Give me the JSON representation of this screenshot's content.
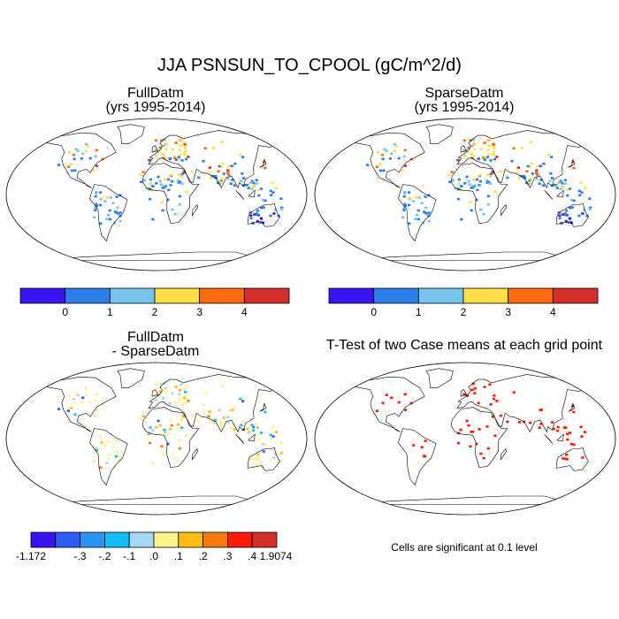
{
  "figure": {
    "title": "JJA PSNSUN_TO_CPOOL (gC/m^2/d)",
    "sig_note": "Cells are significant at 0.1 level"
  },
  "panels": [
    {
      "name": "full",
      "title_line1": "FullDatm",
      "title_line2": "(yrs 1995-2014)"
    },
    {
      "name": "sparse",
      "title_line1": "SparseDatm",
      "title_line2": "(yrs 1995-2014)"
    },
    {
      "name": "diff",
      "title_line1": "FullDatm",
      "title_line2": "- SparseDatm"
    },
    {
      "name": "ttest",
      "title_line1": "T-Test of two Case means at each grid point",
      "title_line2": ""
    }
  ],
  "colorbars": {
    "value": {
      "colors": [
        "#3a14f0",
        "#2d7ee8",
        "#74c4ec",
        "#fde047",
        "#fb6a0c",
        "#d3302c"
      ],
      "labels": [
        "0",
        "1",
        "2",
        "3",
        "4"
      ]
    },
    "diff": {
      "colors": [
        "#3a14f0",
        "#2e5ff0",
        "#2b92f2",
        "#12bdf6",
        "#a6d7f0",
        "#fef28a",
        "#fdbd13",
        "#fb7a0f",
        "#ff1a0a",
        "#d3302c"
      ],
      "labels": [
        "-1.172",
        "-.3",
        "-.2",
        "-.1",
        ".0",
        ".1",
        ".2",
        ".3",
        ".4",
        "1.9074"
      ]
    }
  },
  "chart_data": [
    {
      "type": "heatmap",
      "title": "FullDatm (yrs 1995-2014)",
      "projection": "Robinson",
      "colorbar_levels": [
        0,
        1,
        2,
        3,
        4
      ],
      "colors": [
        "#3a14f0",
        "#2d7ee8",
        "#74c4ec",
        "#fde047",
        "#fb6a0c",
        "#d3302c"
      ]
    },
    {
      "type": "heatmap",
      "title": "SparseDatm (yrs 1995-2014)",
      "projection": "Robinson",
      "colorbar_levels": [
        0,
        1,
        2,
        3,
        4
      ],
      "colors": [
        "#3a14f0",
        "#2d7ee8",
        "#74c4ec",
        "#fde047",
        "#fb6a0c",
        "#d3302c"
      ]
    },
    {
      "type": "heatmap",
      "title": "FullDatm - SparseDatm",
      "projection": "Robinson",
      "colorbar_levels": [
        -1.172,
        -0.3,
        -0.2,
        -0.1,
        0.0,
        0.1,
        0.2,
        0.3,
        0.4,
        1.9074
      ]
    },
    {
      "type": "heatmap",
      "title": "T-Test of two Case means at each grid point",
      "projection": "Robinson",
      "significance_level": 0.1
    }
  ]
}
